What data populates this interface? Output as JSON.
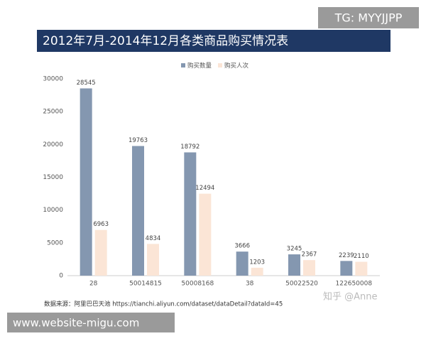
{
  "chart_data": {
    "type": "bar",
    "title": "2012年7月-2014年12月各类商品购买情况表",
    "categories": [
      "28",
      "50014815",
      "50008168",
      "38",
      "50022520",
      "122650008"
    ],
    "series": [
      {
        "name": "购买数量",
        "color": "#8497b0",
        "values": [
          28545,
          19763,
          18792,
          3666,
          3245,
          2239
        ]
      },
      {
        "name": "购买人次",
        "color": "#fbe5d6",
        "values": [
          6963,
          4834,
          12494,
          1203,
          2367,
          2110
        ]
      }
    ],
    "ylim": [
      0,
      30000
    ],
    "yticks": [
      0,
      5000,
      10000,
      15000,
      20000,
      25000,
      30000
    ],
    "grid": false,
    "legend": "top",
    "source": "数据来源：阿里巴巴天池 https://tianchi.aliyun.com/dataset/dataDetail?dataId=45"
  },
  "overlays": {
    "top_right": "TG: MYYJJPP",
    "bottom_left": "www.website-migu.com",
    "signature": "知乎 @Anne"
  }
}
